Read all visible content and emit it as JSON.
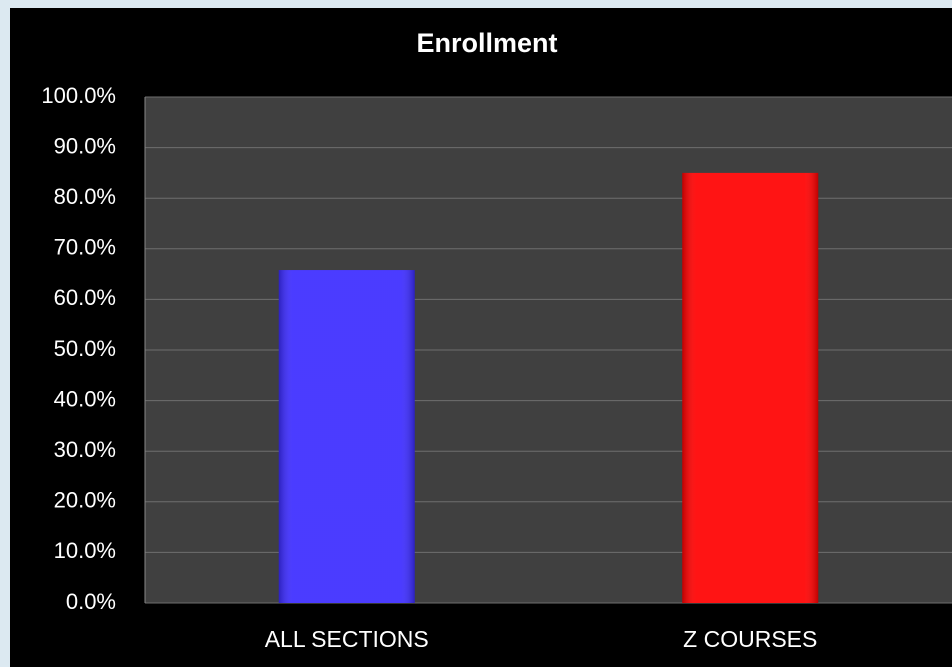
{
  "chart_data": {
    "type": "bar",
    "title": "Enrollment",
    "categories": [
      "ALL SECTIONS",
      "Z COURSES"
    ],
    "series": [
      {
        "name": null,
        "colors": [
          "#3b2bff",
          "#ff0000"
        ],
        "values": [
          65.8,
          85.0
        ]
      }
    ],
    "ylim": [
      0,
      100
    ],
    "yticks": [
      {
        "value": 0,
        "label": "0.0%"
      },
      {
        "value": 10,
        "label": "10.0%"
      },
      {
        "value": 20,
        "label": "20.0%"
      },
      {
        "value": 30,
        "label": "30.0%"
      },
      {
        "value": 40,
        "label": "40.0%"
      },
      {
        "value": 50,
        "label": "50.0%"
      },
      {
        "value": 60,
        "label": "60.0%"
      },
      {
        "value": 70,
        "label": "70.0%"
      },
      {
        "value": 80,
        "label": "80.0%"
      },
      {
        "value": 90,
        "label": "90.0%"
      },
      {
        "value": 100,
        "label": "100.0%"
      }
    ],
    "grid": true
  }
}
